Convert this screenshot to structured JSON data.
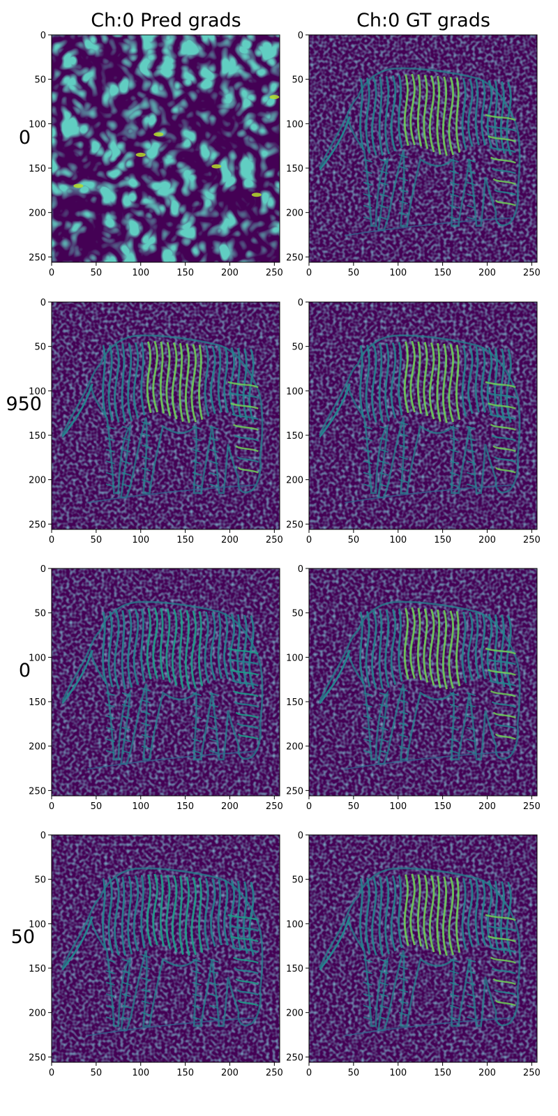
{
  "figure": {
    "column_titles": [
      "Ch:0 Pred grads",
      "Ch:0 GT grads"
    ],
    "row_labels": [
      "0",
      "950",
      "0",
      "50"
    ]
  },
  "colormap": {
    "name": "viridis",
    "stops": [
      "#440154",
      "#482878",
      "#3e4989",
      "#31688e",
      "#26828e",
      "#1f9e89",
      "#35b779",
      "#6ece58",
      "#b5de2b",
      "#fde725"
    ]
  },
  "chart_data": {
    "type": "heatmap",
    "layout": "grid 4 rows x 2 columns of image panels",
    "xlim": [
      0,
      256
    ],
    "ylim": [
      256,
      0
    ],
    "x_ticks": [
      0,
      50,
      100,
      150,
      200,
      250
    ],
    "y_ticks": [
      0,
      50,
      100,
      150,
      200,
      250
    ],
    "grid": false,
    "panels": [
      {
        "row": 0,
        "col": 0,
        "content": "noise"
      },
      {
        "row": 0,
        "col": 1,
        "content": "zebra-edges",
        "stripe_intensity": 0.85
      },
      {
        "row": 1,
        "col": 0,
        "content": "zebra-edges",
        "stripe_intensity": 0.9
      },
      {
        "row": 1,
        "col": 1,
        "content": "zebra-edges",
        "stripe_intensity": 0.85
      },
      {
        "row": 2,
        "col": 0,
        "content": "zebra-edges",
        "stripe_intensity": 0.55
      },
      {
        "row": 2,
        "col": 1,
        "content": "zebra-edges",
        "stripe_intensity": 0.85
      },
      {
        "row": 3,
        "col": 0,
        "content": "zebra-edges",
        "stripe_intensity": 0.55
      },
      {
        "row": 3,
        "col": 1,
        "content": "zebra-edges",
        "stripe_intensity": 0.85
      }
    ]
  }
}
